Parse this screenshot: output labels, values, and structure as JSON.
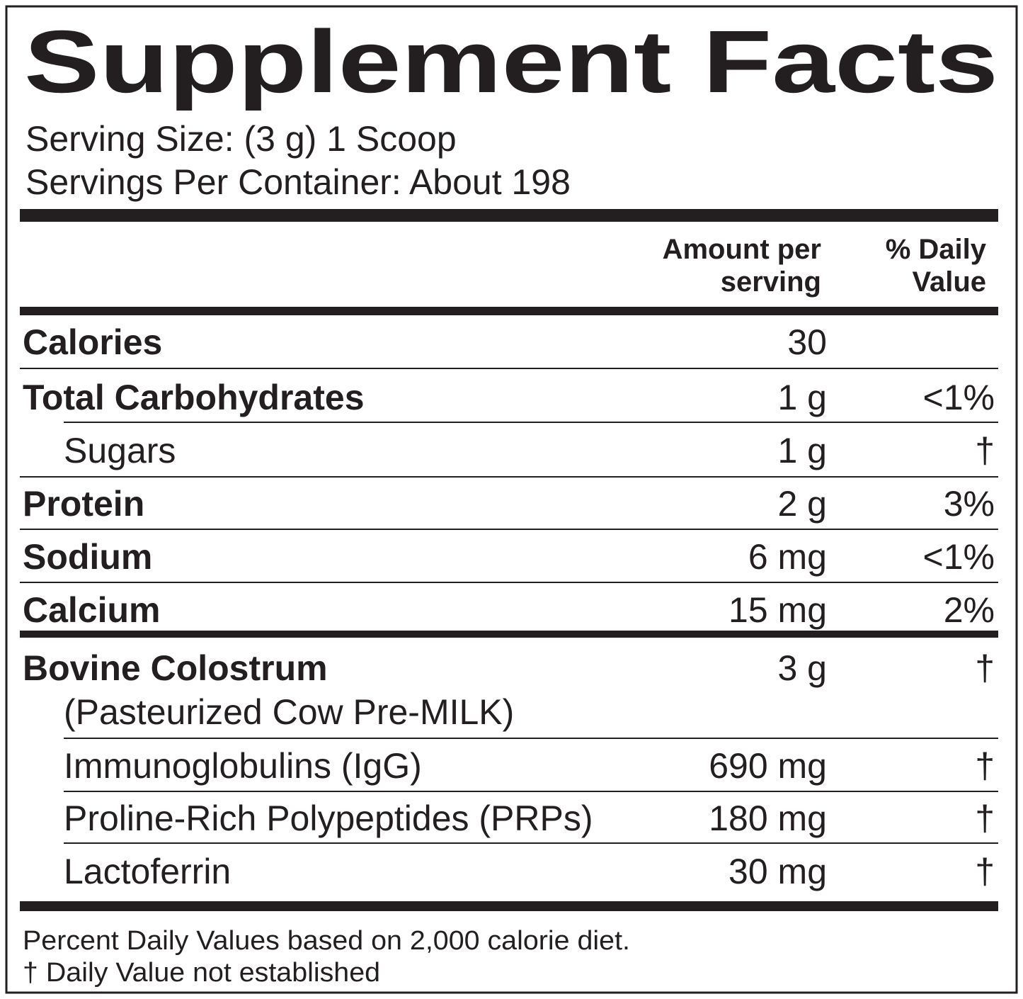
{
  "title": "Supplement Facts",
  "serving_size": "Serving Size: (3 g) 1 Scoop",
  "servings_per_container": "Servings Per Container: About 198",
  "header": {
    "amount": [
      "Amount per",
      "serving"
    ],
    "daily_value": [
      "% Daily",
      "Value"
    ]
  },
  "rows": [
    {
      "name": "Calories",
      "amount": "30"
    },
    {
      "name": "Total Carbohydrates",
      "amount": "1 g",
      "daily_value": "<1%"
    },
    {
      "name": "Sugars",
      "amount": "1 g",
      "daily_value": "†"
    },
    {
      "name": "Protein",
      "amount": "2 g",
      "daily_value": "3%"
    },
    {
      "name": "Sodium",
      "amount": "6 mg",
      "daily_value": "<1%"
    },
    {
      "name": "Calcium",
      "amount": "15 mg",
      "daily_value": "2%"
    },
    {
      "name": "Bovine Colostrum",
      "note": "(Pasteurized Cow Pre-MILK)",
      "amount": "3 g",
      "daily_value": "†"
    },
    {
      "name": "Immunoglobulins (IgG)",
      "amount": "690 mg",
      "daily_value": "†"
    },
    {
      "name": "Proline-Rich Polypeptides (PRPs)",
      "amount": "180 mg",
      "daily_value": "†"
    },
    {
      "name": "Lactoferrin",
      "amount": "30 mg",
      "daily_value": "†"
    }
  ],
  "footnotes": [
    "Percent Daily Values based on 2,000 calorie diet.",
    "† Daily Value not established"
  ]
}
